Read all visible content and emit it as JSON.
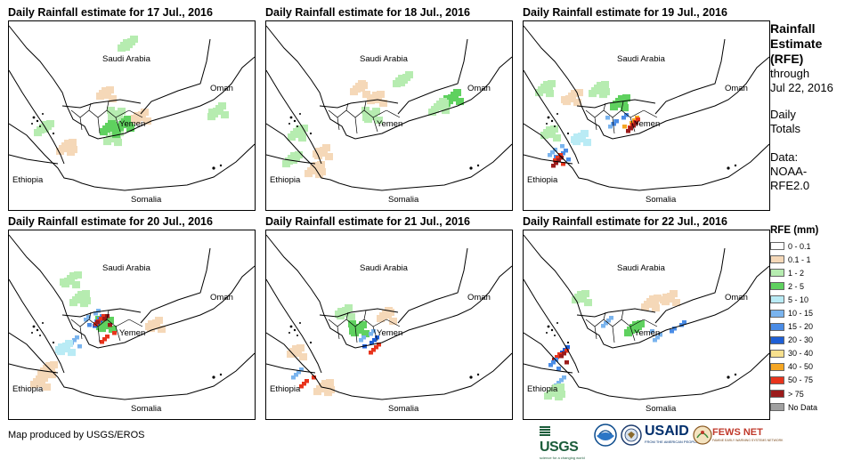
{
  "panels": [
    {
      "title": "Daily Rainfall estimate for 17 Jul., 2016",
      "day": "17",
      "blobs": [
        {
          "cat": "1 - 2",
          "dx": -2,
          "dy": -10
        },
        {
          "cat": "1 - 2",
          "dx": -8,
          "dy": 15
        },
        {
          "cat": "1 - 2",
          "dx": -85,
          "dy": 5
        },
        {
          "cat": "1 - 2",
          "dx": 10,
          "dy": -90
        },
        {
          "cat": "1 - 2",
          "dx": 110,
          "dy": -15
        },
        {
          "cat": "2 - 5",
          "dx": 5,
          "dy": 0
        },
        {
          "cat": "2 - 5",
          "dx": -12,
          "dy": 5
        },
        {
          "cat": "0.1 - 1",
          "dx": -15,
          "dy": -35
        },
        {
          "cat": "0.1 - 1",
          "dx": 25,
          "dy": -10
        },
        {
          "cat": "0.1 - 1",
          "dx": -60,
          "dy": 25
        }
      ]
    },
    {
      "title": "Daily Rainfall estimate for 18 Jul., 2016",
      "day": "18",
      "blobs": [
        {
          "cat": "1 - 2",
          "dx": -5,
          "dy": -10
        },
        {
          "cat": "1 - 2",
          "dx": -90,
          "dy": 10
        },
        {
          "cat": "1 - 2",
          "dx": -95,
          "dy": 40
        },
        {
          "cat": "1 - 2",
          "dx": 30,
          "dy": -50
        },
        {
          "cat": "2 - 5",
          "dx": 85,
          "dy": -30
        },
        {
          "cat": "1 - 2",
          "dx": 70,
          "dy": -20
        },
        {
          "cat": "0.1 - 1",
          "dx": -20,
          "dy": -40
        },
        {
          "cat": "0.1 - 1",
          "dx": 0,
          "dy": -30
        },
        {
          "cat": "0.1 - 1",
          "dx": -60,
          "dy": 30
        },
        {
          "cat": "0.1 - 1",
          "dx": -70,
          "dy": 50
        }
      ]
    },
    {
      "title": "Daily Rainfall estimate for 19 Jul., 2016",
      "day": "19",
      "blobs": [
        {
          "cat": "10 - 15",
          "dx": -20,
          "dy": 0
        },
        {
          "cat": "15 - 20",
          "dx": -15,
          "dy": -3
        },
        {
          "cat": "40 - 50",
          "dx": -2,
          "dy": 0
        },
        {
          "cat": "50 - 75",
          "dx": 0,
          "dy": 2
        },
        {
          "cat": "> 75",
          "dx": 2,
          "dy": 3
        },
        {
          "cat": "10 - 15",
          "dx": -85,
          "dy": 30
        },
        {
          "cat": "15 - 20",
          "dx": -80,
          "dy": 35
        },
        {
          "cat": "50 - 75",
          "dx": -85,
          "dy": 40
        },
        {
          "cat": "> 75",
          "dx": -83,
          "dy": 43
        },
        {
          "cat": "1 - 2",
          "dx": -40,
          "dy": -40
        },
        {
          "cat": "2 - 5",
          "dx": -15,
          "dy": -25
        },
        {
          "cat": "1 - 2",
          "dx": -95,
          "dy": 10
        },
        {
          "cat": "5 - 10",
          "dx": -60,
          "dy": 15
        },
        {
          "cat": "0.1 - 1",
          "dx": -70,
          "dy": -30
        },
        {
          "cat": "1 - 2",
          "dx": -100,
          "dy": -40
        }
      ]
    },
    {
      "title": "Daily Rainfall estimate for 20 Jul., 2016",
      "day": "20",
      "blobs": [
        {
          "cat": "2 - 5",
          "dx": -15,
          "dy": -10
        },
        {
          "cat": "10 - 15",
          "dx": -30,
          "dy": -18
        },
        {
          "cat": "15 - 20",
          "dx": -25,
          "dy": -12
        },
        {
          "cat": "20 - 30",
          "dx": -23,
          "dy": -10
        },
        {
          "cat": "50 - 75",
          "dx": -18,
          "dy": -15
        },
        {
          "cat": "50 - 75",
          "dx": -10,
          "dy": 5
        },
        {
          "cat": "> 75",
          "dx": -17,
          "dy": -14
        },
        {
          "cat": "10 - 15",
          "dx": -50,
          "dy": 10
        },
        {
          "cat": "5 - 10",
          "dx": -60,
          "dy": 15
        },
        {
          "cat": "1 - 2",
          "dx": -45,
          "dy": -40
        },
        {
          "cat": "0.1 - 1",
          "dx": -80,
          "dy": 40
        },
        {
          "cat": "0.1 - 1",
          "dx": -90,
          "dy": 55
        },
        {
          "cat": "0.1 - 1",
          "dx": 40,
          "dy": -10
        },
        {
          "cat": "1 - 2",
          "dx": -55,
          "dy": -60
        }
      ]
    },
    {
      "title": "Daily Rainfall estimate for 21 Jul., 2016",
      "day": "21",
      "blobs": [
        {
          "cat": "2 - 5",
          "dx": -20,
          "dy": -5
        },
        {
          "cat": "10 - 15",
          "dx": -10,
          "dy": 5
        },
        {
          "cat": "20 - 30",
          "dx": -5,
          "dy": 12
        },
        {
          "cat": "50 - 75",
          "dx": -2,
          "dy": 20
        },
        {
          "cat": "10 - 15",
          "dx": -85,
          "dy": 45
        },
        {
          "cat": "50 - 75",
          "dx": -75,
          "dy": 55
        },
        {
          "cat": "0.1 - 1",
          "dx": 10,
          "dy": -20
        },
        {
          "cat": "0.1 - 1",
          "dx": -90,
          "dy": 20
        },
        {
          "cat": "1 - 2",
          "dx": -35,
          "dy": -25
        },
        {
          "cat": "0.1 - 1",
          "dx": -60,
          "dy": 60
        }
      ]
    },
    {
      "title": "Daily Rainfall estimate for 22 Jul., 2016",
      "day": "22",
      "blobs": [
        {
          "cat": "10 - 15",
          "dx": 30,
          "dy": 5
        },
        {
          "cat": "15 - 20",
          "dx": 50,
          "dy": -5
        },
        {
          "cat": "2 - 5",
          "dx": 0,
          "dy": -5
        },
        {
          "cat": "10 - 15",
          "dx": -30,
          "dy": -10
        },
        {
          "cat": "20 - 30",
          "dx": -75,
          "dy": 20
        },
        {
          "cat": "50 - 75",
          "dx": -80,
          "dy": 25
        },
        {
          "cat": "> 75",
          "dx": -82,
          "dy": 28
        },
        {
          "cat": "15 - 20",
          "dx": -90,
          "dy": 35
        },
        {
          "cat": "10 - 15",
          "dx": -80,
          "dy": 55
        },
        {
          "cat": "1 - 2",
          "dx": -90,
          "dy": 65
        },
        {
          "cat": "0.1 - 1",
          "dx": 20,
          "dy": -35
        },
        {
          "cat": "1 - 2",
          "dx": -60,
          "dy": -40
        },
        {
          "cat": "0.1 - 1",
          "dx": 40,
          "dy": -40
        }
      ]
    }
  ],
  "countries": {
    "saudi": "Saudi Arabia",
    "oman": "Oman",
    "yemen": "Yemen",
    "ethiopia": "Ethiopia",
    "somalia": "Somalia"
  },
  "info": {
    "title_lines": [
      "Rainfall",
      "Estimate",
      "(RFE)"
    ],
    "through": "through",
    "date": "Jul 22, 2016",
    "daily": "Daily",
    "totals": "Totals",
    "data_label": "Data:",
    "source_1": "NOAA-",
    "source_2": "RFE2.0"
  },
  "legend": {
    "title": "RFE (mm)",
    "items": [
      {
        "label": "0 - 0.1",
        "color": "#ffffff"
      },
      {
        "label": "0.1 - 1",
        "color": "#f5d8b8"
      },
      {
        "label": "1 - 2",
        "color": "#b6ecb0"
      },
      {
        "label": "2 - 5",
        "color": "#5fd15f"
      },
      {
        "label": "5 - 10",
        "color": "#b9ebf5"
      },
      {
        "label": "10 - 15",
        "color": "#7ab4ee"
      },
      {
        "label": "15 - 20",
        "color": "#4a8ce6"
      },
      {
        "label": "20 - 30",
        "color": "#1e5fd6"
      },
      {
        "label": "30 - 40",
        "color": "#f7e08e"
      },
      {
        "label": "40 - 50",
        "color": "#f5a623"
      },
      {
        "label": "50 - 75",
        "color": "#e8341c"
      },
      {
        "label": "> 75",
        "color": "#9b1b1b"
      },
      {
        "label": "No Data",
        "color": "#a0a0a0"
      }
    ]
  },
  "credit": "Map produced by USGS/EROS",
  "logos": {
    "usgs": "USGS",
    "usgs_tagline": "science for a changing world",
    "noaa": "NOAA",
    "dos": "Department of State",
    "usaid": "USAID",
    "usaid_tagline": "FROM THE AMERICAN PEOPLE",
    "fews": "FEWS NET",
    "fews_tagline": "FAMINE EARLY WARNING SYSTEMS NETWORK"
  }
}
